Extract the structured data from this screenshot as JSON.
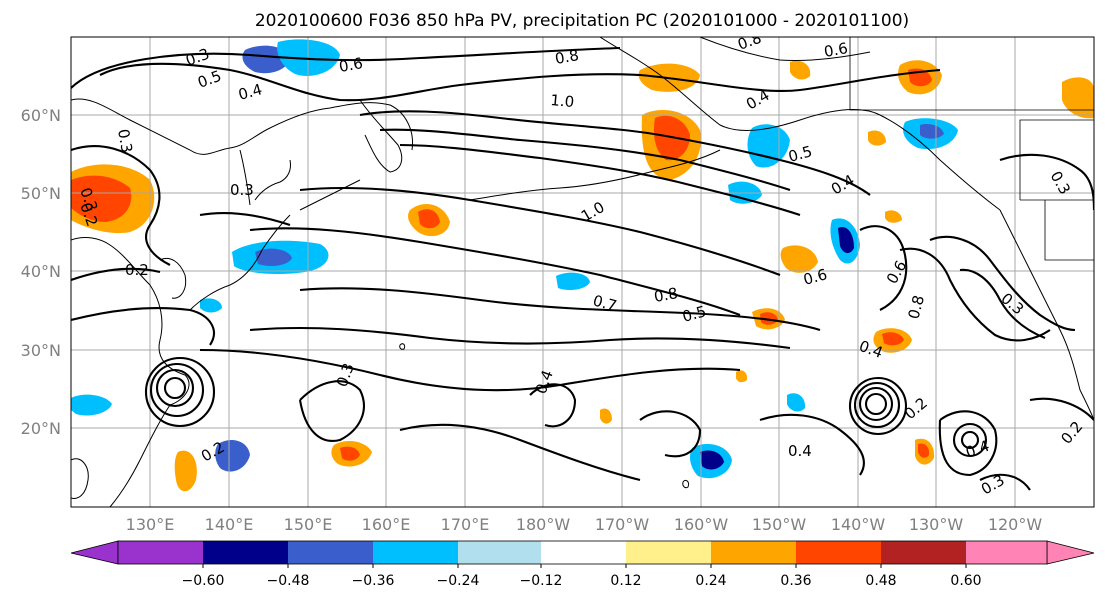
{
  "title": "2020100600 F036 850 hPa PV, precipitation PC (2020101000 - 2020101100)",
  "lat_labels": [
    "60°N",
    "50°N",
    "40°N",
    "30°N",
    "20°N"
  ],
  "lon_labels": [
    "130°E",
    "140°E",
    "150°E",
    "160°E",
    "170°E",
    "180°W",
    "170°W",
    "160°W",
    "150°W",
    "140°W",
    "130°W",
    "120°W"
  ],
  "colorbar": {
    "colors": [
      "#9a32cd",
      "#00008b",
      "#3a5fcd",
      "#00bfff",
      "#b2dfee",
      "#ffffff",
      "#fff08c",
      "#ffa500",
      "#ff4500",
      "#b22222",
      "#ff83b4"
    ],
    "ticks": [
      "−0.60",
      "−0.48",
      "−0.36",
      "−0.24",
      "−0.12",
      "0.12",
      "0.24",
      "0.36",
      "0.48",
      "0.60"
    ]
  },
  "contour_labels": [
    "0.3",
    "0.5",
    "0.6",
    "0.4",
    "0.8",
    "0.6",
    "0.8",
    "1.0",
    "0.4",
    "0.5",
    "0.3",
    "0.3",
    "0.2",
    "1.0",
    "0.3",
    "0.2",
    "0.7",
    "0.8",
    "0.5",
    "0.6",
    "0.4",
    "0.6",
    "0.8",
    "0.3",
    "0.4",
    "0.3",
    "0.3",
    "0.4",
    "0.2",
    "0.4",
    "0.4",
    "0.2",
    "0.3",
    "0.2"
  ]
}
